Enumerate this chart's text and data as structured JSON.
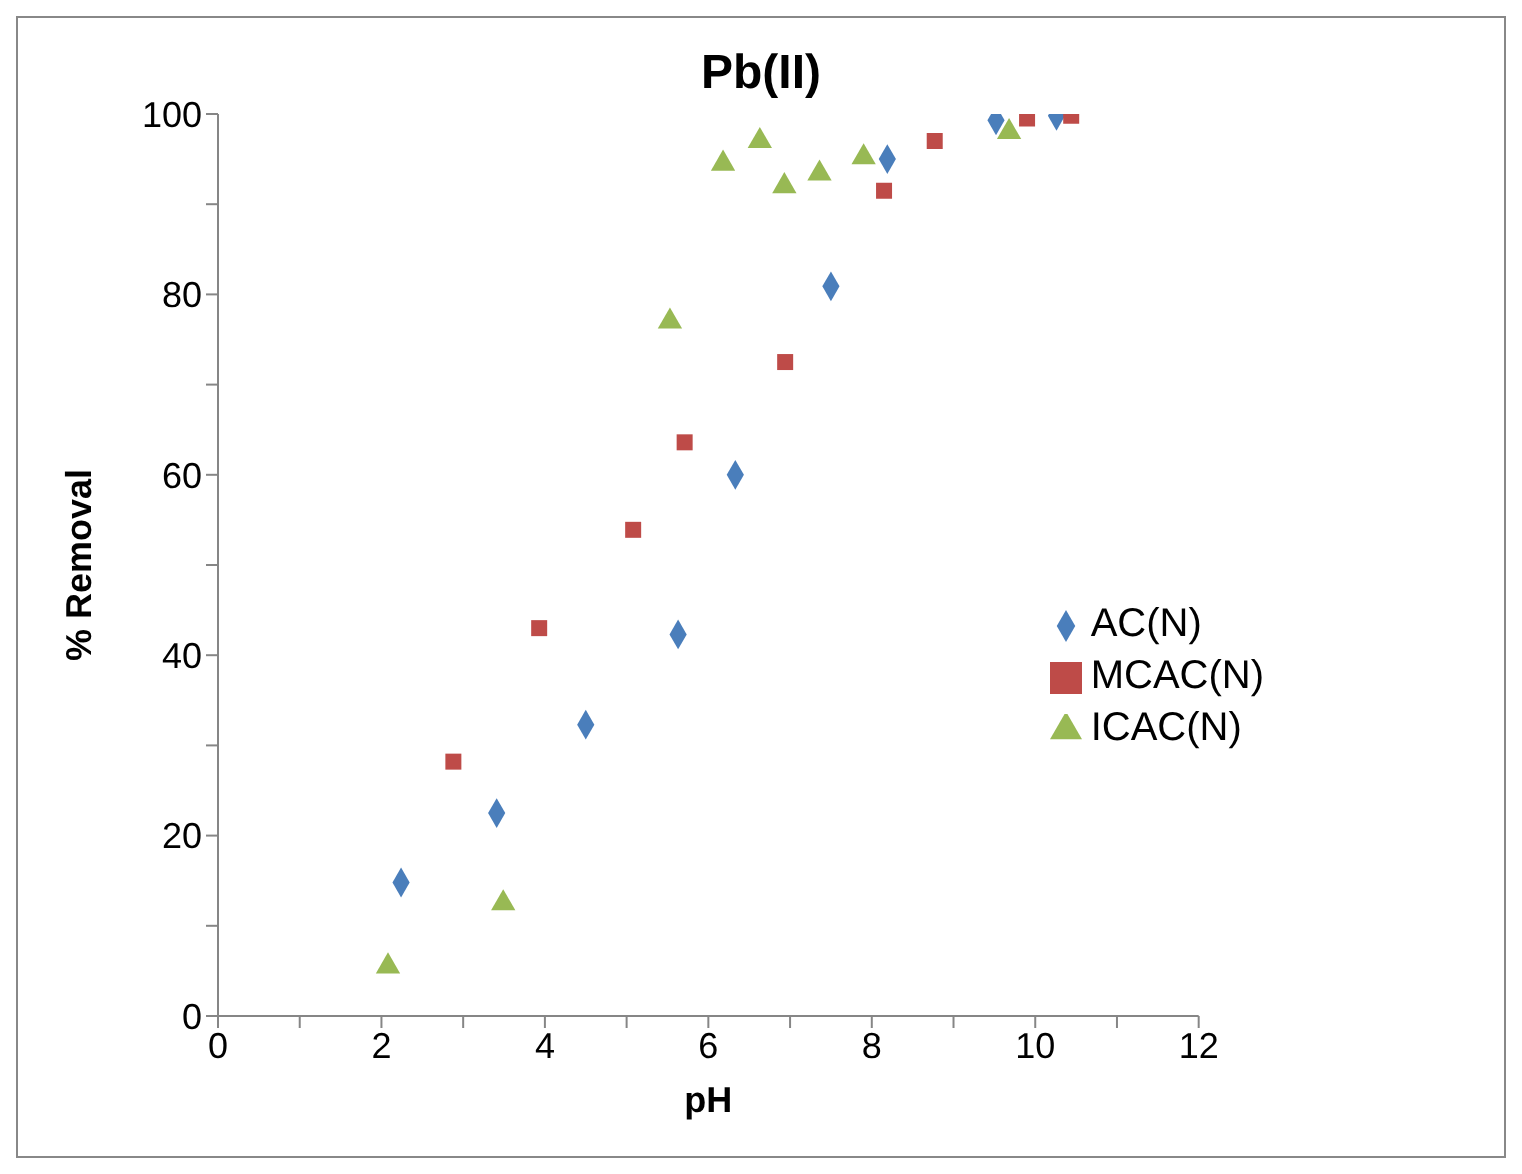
{
  "chart_data": {
    "type": "scatter",
    "title": "Pb(II)",
    "xlabel": "pH",
    "ylabel": "% Removal",
    "xlim": [
      0,
      12
    ],
    "ylim": [
      0,
      100
    ],
    "xticks": [
      0,
      {
        "value": 1,
        "label": null
      },
      2,
      {
        "value": 3,
        "label": null
      },
      4,
      {
        "value": 5,
        "label": null
      },
      6,
      {
        "value": 7,
        "label": null
      },
      8,
      {
        "value": 9,
        "label": null
      },
      10,
      {
        "value": 11,
        "label": null
      },
      12
    ],
    "yticks": [
      0,
      {
        "value": 10,
        "label": null
      },
      20,
      {
        "value": 30,
        "label": null
      },
      40,
      {
        "value": 50,
        "label": null
      },
      60,
      {
        "value": 70,
        "label": null
      },
      80,
      {
        "value": 90,
        "label": null
      },
      100
    ],
    "grid": false,
    "legend": "right",
    "series": [
      {
        "name": "AC(N)",
        "color": "#4a7ebb",
        "marker": "diamond",
        "x": [
          2.24,
          3.41,
          4.5,
          5.63,
          6.33,
          7.5,
          8.19,
          9.52,
          10.26
        ],
        "values": [
          14.8,
          22.5,
          32.3,
          42.3,
          60,
          80.9,
          95,
          99.3,
          99.8
        ]
      },
      {
        "name": "MCAC(N)",
        "color": "#be4b48",
        "marker": "square",
        "x": [
          2.88,
          3.93,
          5.08,
          5.71,
          6.94,
          8.15,
          8.77,
          9.9,
          10.44
        ],
        "values": [
          28.2,
          43,
          53.9,
          63.6,
          72.5,
          91.5,
          97,
          99.5,
          99.8
        ]
      },
      {
        "name": "ICAC(N)",
        "color": "#98b954",
        "marker": "triangle",
        "x": [
          2.08,
          3.49,
          5.53,
          6.18,
          6.63,
          6.93,
          7.36,
          7.9,
          9.68
        ],
        "values": [
          5.5,
          12.5,
          77,
          94.5,
          97,
          92,
          93.4,
          95.2,
          98
        ]
      }
    ]
  }
}
